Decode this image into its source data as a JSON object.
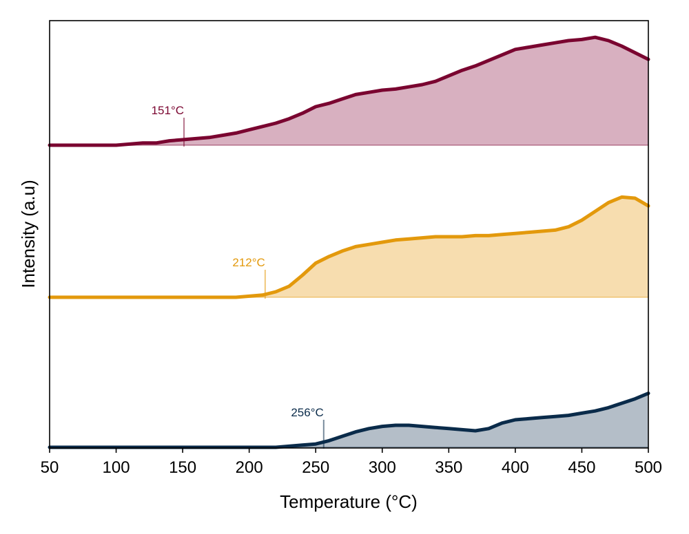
{
  "chart_data": {
    "type": "area",
    "xlabel": "Temperature (°C)",
    "ylabel": "Intensity (a.u)",
    "xlim": [
      50,
      500
    ],
    "xticks": [
      50,
      100,
      150,
      200,
      250,
      300,
      350,
      400,
      450,
      500
    ],
    "yticks": [],
    "grid": false,
    "legend": "none",
    "style": "stacked offset curves with filled area to each baseline",
    "series": [
      {
        "color": "#7a0530",
        "fill_color": "#d8b0c0",
        "onset_label": "151°C",
        "onset_x": 151,
        "x": [
          50,
          60,
          70,
          80,
          90,
          100,
          110,
          120,
          130,
          140,
          150,
          160,
          170,
          180,
          190,
          200,
          210,
          220,
          230,
          240,
          250,
          260,
          270,
          280,
          290,
          300,
          310,
          320,
          330,
          340,
          350,
          360,
          370,
          380,
          390,
          400,
          410,
          420,
          430,
          440,
          450,
          460,
          470,
          480,
          490,
          500
        ],
        "y": [
          0.0,
          0.0,
          0.0,
          0.0,
          0.0,
          0.0,
          0.01,
          0.02,
          0.02,
          0.04,
          0.05,
          0.06,
          0.07,
          0.09,
          0.11,
          0.14,
          0.17,
          0.2,
          0.24,
          0.29,
          0.35,
          0.38,
          0.42,
          0.46,
          0.48,
          0.5,
          0.51,
          0.53,
          0.55,
          0.58,
          0.63,
          0.68,
          0.72,
          0.77,
          0.82,
          0.87,
          0.89,
          0.91,
          0.93,
          0.95,
          0.96,
          0.98,
          0.95,
          0.9,
          0.84,
          0.78
        ]
      },
      {
        "color": "#e3990c",
        "fill_color": "#f7ddaf",
        "onset_label": "212°C",
        "onset_x": 212,
        "x": [
          50,
          60,
          70,
          80,
          90,
          100,
          110,
          120,
          130,
          140,
          150,
          160,
          170,
          180,
          190,
          200,
          210,
          220,
          230,
          240,
          250,
          260,
          270,
          280,
          290,
          300,
          310,
          320,
          330,
          340,
          350,
          360,
          370,
          380,
          390,
          400,
          410,
          420,
          430,
          440,
          450,
          460,
          470,
          480,
          490,
          500
        ],
        "y": [
          0.0,
          0.0,
          0.0,
          0.0,
          0.0,
          0.0,
          0.0,
          0.0,
          0.0,
          0.0,
          0.0,
          0.0,
          0.0,
          0.0,
          0.0,
          0.01,
          0.02,
          0.05,
          0.1,
          0.2,
          0.31,
          0.37,
          0.42,
          0.46,
          0.48,
          0.5,
          0.52,
          0.53,
          0.54,
          0.55,
          0.55,
          0.55,
          0.56,
          0.56,
          0.57,
          0.58,
          0.59,
          0.6,
          0.61,
          0.64,
          0.7,
          0.78,
          0.86,
          0.91,
          0.9,
          0.83
        ]
      },
      {
        "color": "#0a2b4a",
        "fill_color": "#b4bec8",
        "onset_label": "256°C",
        "onset_x": 256,
        "x": [
          50,
          60,
          70,
          80,
          90,
          100,
          110,
          120,
          130,
          140,
          150,
          160,
          170,
          180,
          190,
          200,
          210,
          220,
          230,
          240,
          250,
          260,
          270,
          280,
          290,
          300,
          310,
          320,
          330,
          340,
          350,
          360,
          370,
          380,
          390,
          400,
          410,
          420,
          430,
          440,
          450,
          460,
          470,
          480,
          490,
          500
        ],
        "y": [
          0.0,
          0.0,
          0.0,
          0.0,
          0.0,
          0.0,
          0.0,
          0.0,
          0.0,
          0.0,
          0.0,
          0.0,
          0.0,
          0.0,
          0.0,
          0.0,
          0.0,
          0.0,
          0.01,
          0.02,
          0.03,
          0.06,
          0.1,
          0.14,
          0.17,
          0.19,
          0.2,
          0.2,
          0.19,
          0.18,
          0.17,
          0.16,
          0.15,
          0.17,
          0.22,
          0.25,
          0.26,
          0.27,
          0.28,
          0.29,
          0.31,
          0.33,
          0.36,
          0.4,
          0.44,
          0.49
        ]
      }
    ]
  }
}
